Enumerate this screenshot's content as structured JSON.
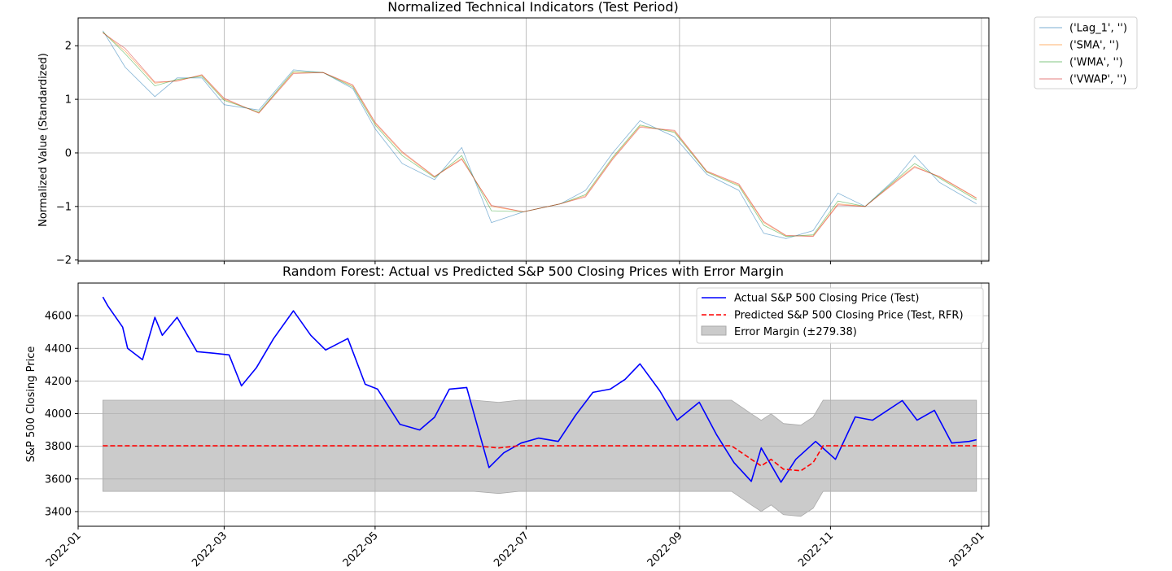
{
  "chart_data": [
    {
      "type": "line",
      "title": "Normalized Technical Indicators (Test Period)",
      "xlabel": "",
      "ylabel": "Normalized Value (Standardized)",
      "ylim": [
        -2.02,
        2.52
      ],
      "yticks": [
        -2,
        -1,
        0,
        1,
        2
      ],
      "ytick_labels": [
        "−2",
        "−1",
        "0",
        "1",
        "2"
      ],
      "grid": true,
      "legend_position": "outside-top-right",
      "x_range": [
        "2022-01-01",
        "2023-01-04"
      ],
      "x_dates": [
        "2022-01-11",
        "2022-01-20",
        "2022-02-01",
        "2022-02-10",
        "2022-02-20",
        "2022-03-01",
        "2022-03-15",
        "2022-03-29",
        "2022-04-10",
        "2022-04-22",
        "2022-05-01",
        "2022-05-12",
        "2022-05-25",
        "2022-06-05",
        "2022-06-17",
        "2022-06-30",
        "2022-07-15",
        "2022-07-25",
        "2022-08-05",
        "2022-08-16",
        "2022-08-30",
        "2022-09-12",
        "2022-09-25",
        "2022-10-05",
        "2022-10-14",
        "2022-10-25",
        "2022-11-04",
        "2022-11-15",
        "2022-11-28",
        "2022-12-05",
        "2022-12-15",
        "2022-12-30"
      ],
      "series": [
        {
          "name": "('Lag_1', '')",
          "color": "#1f77b4",
          "values": [
            2.28,
            1.6,
            1.05,
            1.4,
            1.4,
            0.9,
            0.8,
            1.55,
            1.5,
            1.2,
            0.45,
            -0.2,
            -0.5,
            0.1,
            -1.3,
            -1.1,
            -0.95,
            -0.7,
            0.0,
            0.6,
            0.3,
            -0.4,
            -0.7,
            -1.5,
            -1.6,
            -1.45,
            -0.75,
            -1.0,
            -0.45,
            -0.05,
            -0.55,
            -0.95
          ]
        },
        {
          "name": "('SMA', '')",
          "color": "#ff7f0e",
          "values": [
            2.25,
            1.9,
            1.3,
            1.35,
            1.45,
            1.0,
            0.75,
            1.5,
            1.5,
            1.25,
            0.55,
            0.0,
            -0.45,
            -0.1,
            -1.0,
            -1.1,
            -0.95,
            -0.8,
            -0.1,
            0.5,
            0.4,
            -0.35,
            -0.6,
            -1.3,
            -1.55,
            -1.55,
            -0.95,
            -1.0,
            -0.5,
            -0.25,
            -0.45,
            -0.85
          ]
        },
        {
          "name": "('WMA', '')",
          "color": "#2ca02c",
          "values": [
            2.26,
            1.85,
            1.25,
            1.37,
            1.43,
            0.98,
            0.76,
            1.52,
            1.5,
            1.23,
            0.52,
            -0.05,
            -0.46,
            -0.05,
            -1.08,
            -1.1,
            -0.95,
            -0.78,
            -0.08,
            0.52,
            0.38,
            -0.36,
            -0.62,
            -1.35,
            -1.56,
            -1.53,
            -0.9,
            -1.0,
            -0.48,
            -0.2,
            -0.47,
            -0.88
          ]
        },
        {
          "name": "('VWAP', '')",
          "color": "#d62728",
          "values": [
            2.24,
            1.95,
            1.32,
            1.34,
            1.46,
            1.02,
            0.74,
            1.48,
            1.5,
            1.27,
            0.57,
            0.02,
            -0.44,
            -0.12,
            -0.98,
            -1.1,
            -0.95,
            -0.82,
            -0.12,
            0.48,
            0.42,
            -0.34,
            -0.58,
            -1.28,
            -1.54,
            -1.56,
            -0.97,
            -1.0,
            -0.52,
            -0.27,
            -0.44,
            -0.84
          ]
        }
      ],
      "xtick_labels": [
        "2022-01",
        "2022-03",
        "2022-05",
        "2022-07",
        "2022-09",
        "2022-11",
        "2023-01"
      ]
    },
    {
      "type": "line",
      "title": "Random Forest: Actual vs Predicted S&P 500 Closing Prices with Error Margin",
      "xlabel": "",
      "ylabel": "S&P 500 Closing Price",
      "ylim": [
        3310,
        4800
      ],
      "yticks": [
        3400,
        3600,
        3800,
        4000,
        4200,
        4400,
        4600
      ],
      "grid": true,
      "legend_position": "upper-right",
      "x_range": [
        "2022-01-01",
        "2023-01-04"
      ],
      "xtick_labels": [
        "2022-01",
        "2022-03",
        "2022-05",
        "2022-07",
        "2022-09",
        "2022-11",
        "2023-01"
      ],
      "actual": {
        "name": "Actual S&P 500 Closing Price (Test)",
        "color": "#0000ff",
        "x": [
          "2022-01-11",
          "2022-01-13",
          "2022-01-19",
          "2022-01-21",
          "2022-01-27",
          "2022-02-01",
          "2022-02-04",
          "2022-02-10",
          "2022-02-18",
          "2022-02-25",
          "2022-03-03",
          "2022-03-08",
          "2022-03-14",
          "2022-03-21",
          "2022-03-29",
          "2022-04-05",
          "2022-04-11",
          "2022-04-20",
          "2022-04-27",
          "2022-05-02",
          "2022-05-11",
          "2022-05-19",
          "2022-05-25",
          "2022-05-31",
          "2022-06-07",
          "2022-06-16",
          "2022-06-22",
          "2022-06-29",
          "2022-07-06",
          "2022-07-14",
          "2022-07-21",
          "2022-07-28",
          "2022-08-04",
          "2022-08-10",
          "2022-08-16",
          "2022-08-24",
          "2022-08-31",
          "2022-09-09",
          "2022-09-16",
          "2022-09-23",
          "2022-09-30",
          "2022-10-04",
          "2022-10-12",
          "2022-10-18",
          "2022-10-26",
          "2022-11-03",
          "2022-11-11",
          "2022-11-18",
          "2022-11-30",
          "2022-12-06",
          "2022-12-13",
          "2022-12-20",
          "2022-12-27",
          "2022-12-30"
        ],
        "values": [
          4715,
          4660,
          4530,
          4400,
          4330,
          4590,
          4480,
          4590,
          4380,
          4370,
          4360,
          4170,
          4280,
          4460,
          4630,
          4480,
          4390,
          4460,
          4180,
          4150,
          3935,
          3900,
          3978,
          4150,
          4160,
          3670,
          3760,
          3820,
          3850,
          3830,
          3990,
          4130,
          4150,
          4210,
          4305,
          4140,
          3960,
          4070,
          3870,
          3700,
          3585,
          3790,
          3580,
          3720,
          3830,
          3720,
          3980,
          3960,
          4080,
          3960,
          4020,
          3820,
          3830,
          3840
        ]
      },
      "predicted": {
        "name": "Predicted S&P 500 Closing Price (Test, RFR)",
        "color": "#ff0000",
        "x": [
          "2022-01-11",
          "2022-06-10",
          "2022-06-20",
          "2022-06-28",
          "2022-09-22",
          "2022-09-30",
          "2022-10-04",
          "2022-10-08",
          "2022-10-13",
          "2022-10-20",
          "2022-10-25",
          "2022-10-29",
          "2022-12-30"
        ],
        "values": [
          3803,
          3803,
          3790,
          3803,
          3803,
          3720,
          3680,
          3720,
          3660,
          3650,
          3700,
          3803,
          3803
        ]
      },
      "error_margin": {
        "label": "Error Margin (±279.38)",
        "margin": 279.38,
        "color": "#a9a9a9"
      }
    }
  ]
}
